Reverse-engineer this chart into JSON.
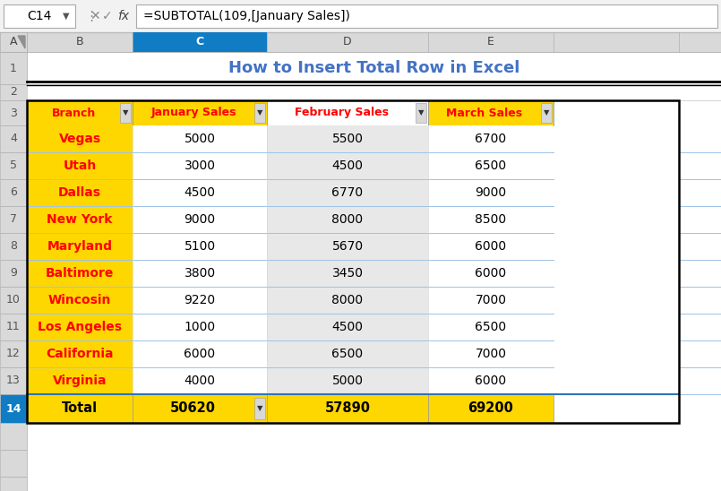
{
  "title": "How to Insert Total Row in Excel",
  "title_color": "#4472C4",
  "formula_bar_text": "=SUBTOTAL(109,[January Sales])",
  "cell_ref": "C14",
  "col_letters": [
    "A",
    "B",
    "C",
    "D",
    "E"
  ],
  "headers": [
    "Branch",
    "January Sales",
    "February Sales",
    "March Sales"
  ],
  "header_text_color": [
    "#FF0000",
    "#FF0000",
    "#FF0000",
    "#FF0000"
  ],
  "header_bgs": [
    "#FFD700",
    "#FFD700",
    "#FFFFFF",
    "#FFD700"
  ],
  "branch_col_bg": "#FFD700",
  "branch_col_text_color": "#FF0000",
  "col_data_bgs": [
    "#FFD700",
    "#FFFFFF",
    "#E8E8E8",
    "#FFFFFF"
  ],
  "rows": [
    [
      "Vegas",
      5000,
      5500,
      6700
    ],
    [
      "Utah",
      3000,
      4500,
      6500
    ],
    [
      "Dallas",
      4500,
      6770,
      9000
    ],
    [
      "New York",
      9000,
      8000,
      8500
    ],
    [
      "Maryland",
      5100,
      5670,
      6000
    ],
    [
      "Baltimore",
      3800,
      3450,
      6000
    ],
    [
      "Wincosin",
      9220,
      8000,
      7000
    ],
    [
      "Los Angeles",
      1000,
      4500,
      6500
    ],
    [
      "California",
      6000,
      6500,
      7000
    ],
    [
      "Virginia",
      4000,
      5000,
      6000
    ]
  ],
  "total_row": [
    "Total",
    50620,
    57890,
    69200
  ],
  "total_bg": "#FFD700",
  "bg_color": "#FFFFFF",
  "toolbar_bg": "#F2F2F2",
  "col_header_bg": "#D9D9D9",
  "row_header_bg": "#D9D9D9",
  "selected_col_bg": "#107CC4",
  "selected_row_bg": "#107CC4",
  "grid_line_color": "#C0C0C0",
  "thin_blue_line": "#9DC3E6"
}
